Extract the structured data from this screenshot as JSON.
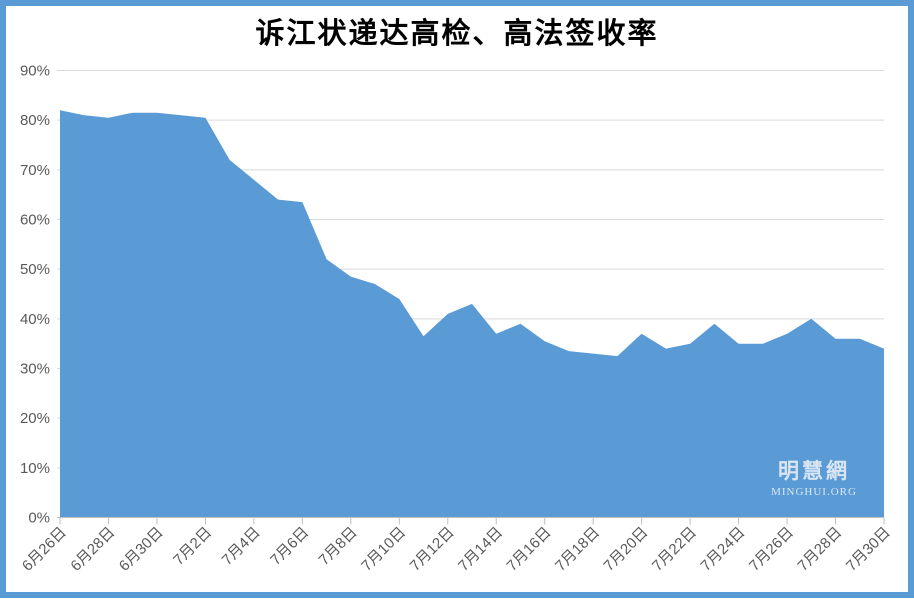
{
  "title": "诉江状递达高检、高法签收率",
  "watermark": {
    "line1": "明慧網",
    "line2": "MINGHUI.ORG"
  },
  "colors": {
    "frame": "#5b9bd5",
    "area_fill": "#5b9bd5",
    "gridline": "#d9d9d9",
    "axis_line": "#bfbfbf",
    "tick_label": "#595959",
    "background": "#ffffff"
  },
  "chart_data": {
    "type": "area",
    "title": "诉江状递达高检、高法签收率",
    "categories": [
      "6月26日",
      "6月27日",
      "6月28日",
      "6月29日",
      "6月30日",
      "7月1日",
      "7月2日",
      "7月3日",
      "7月4日",
      "7月5日",
      "7月6日",
      "7月7日",
      "7月8日",
      "7月9日",
      "7月10日",
      "7月11日",
      "7月12日",
      "7月13日",
      "7月14日",
      "7月15日",
      "7月16日",
      "7月17日",
      "7月18日",
      "7月19日",
      "7月20日",
      "7月21日",
      "7月22日",
      "7月23日",
      "7月24日",
      "7月25日",
      "7月26日",
      "7月27日",
      "7月28日",
      "7月29日",
      "7月30日"
    ],
    "values": [
      82,
      81,
      80.5,
      81.5,
      81.5,
      81,
      80.5,
      72,
      68,
      64,
      63.5,
      52,
      48.5,
      47,
      44,
      36.5,
      41,
      43,
      37,
      39,
      35.5,
      33.5,
      33,
      32.5,
      37,
      34,
      35,
      39,
      35,
      35,
      37,
      40,
      36,
      36,
      34
    ],
    "unit": "%",
    "ylim": [
      0,
      90
    ],
    "y_tick_labels": [
      "0%",
      "10%",
      "20%",
      "30%",
      "40%",
      "50%",
      "60%",
      "70%",
      "80%",
      "90%"
    ],
    "x_tick_step": 2,
    "x_tick_labels": [
      "6月26日",
      "6月28日",
      "6月30日",
      "7月2日",
      "7月4日",
      "7月6日",
      "7月8日",
      "7月10日",
      "7月12日",
      "7月14日",
      "7月16日",
      "7月18日",
      "7月20日",
      "7月22日",
      "7月24日",
      "7月26日",
      "7月28日",
      "7月30日"
    ],
    "x_label_rotation_deg": -45,
    "grid": "horizontal",
    "legend": "none"
  }
}
